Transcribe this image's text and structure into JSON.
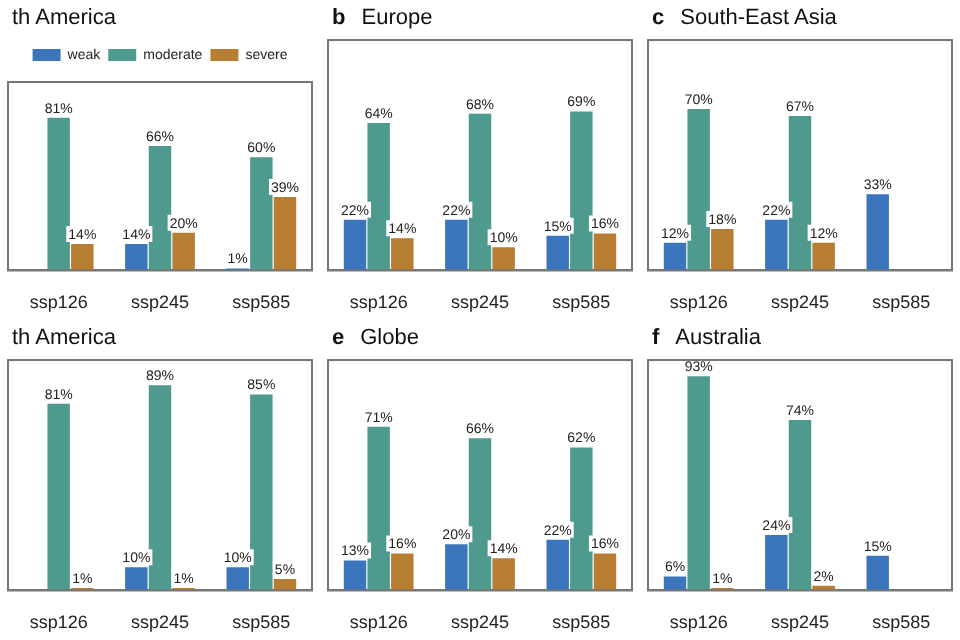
{
  "chart_data": [
    {
      "type": "bar",
      "title": "th America",
      "categories": [
        "ssp126",
        "ssp245",
        "ssp585"
      ],
      "ylim": [
        0,
        100
      ],
      "tick_labels": "x",
      "grid": false,
      "legend": "top",
      "series": [
        {
          "name": "weak",
          "color": "#3b76bd",
          "values": [
            null,
            14,
            1
          ],
          "value_labels": [
            null,
            "14%",
            "1%"
          ]
        },
        {
          "name": "moderate",
          "color": "#4f9a8f",
          "values": [
            81,
            66,
            60
          ],
          "value_labels": [
            "81%",
            "66%",
            "60%"
          ]
        },
        {
          "name": "severe",
          "color": "#b67d33",
          "values": [
            14,
            20,
            39
          ],
          "value_labels": [
            "14%",
            "20%",
            "39%"
          ]
        }
      ]
    },
    {
      "type": "bar",
      "title": "Europe",
      "annotations": [
        "b"
      ],
      "categories": [
        "ssp126",
        "ssp245",
        "ssp585"
      ],
      "ylim": [
        0,
        100
      ],
      "tick_labels": "x",
      "grid": false,
      "legend": false,
      "series": [
        {
          "color": "#3b76bd",
          "values": [
            22,
            22,
            15
          ],
          "value_labels": [
            "22%",
            "22%",
            "15%"
          ]
        },
        {
          "color": "#4f9a8f",
          "values": [
            64,
            68,
            69
          ],
          "value_labels": [
            "64%",
            "68%",
            "69%"
          ]
        },
        {
          "color": "#b67d33",
          "values": [
            14,
            10,
            16
          ],
          "value_labels": [
            "14%",
            "10%",
            "16%"
          ]
        }
      ]
    },
    {
      "type": "bar",
      "title": "South-East Asia",
      "annotations": [
        "c"
      ],
      "categories": [
        "ssp126",
        "ssp245",
        "ssp585"
      ],
      "ylim": [
        0,
        100
      ],
      "tick_labels": "x",
      "grid": false,
      "legend": false,
      "series": [
        {
          "color": "#3b76bd",
          "values": [
            12,
            22,
            33
          ],
          "value_labels": [
            "12%",
            "22%",
            "33%"
          ]
        },
        {
          "color": "#4f9a8f",
          "values": [
            70,
            67,
            null
          ],
          "value_labels": [
            "70%",
            "67%",
            null
          ]
        },
        {
          "color": "#b67d33",
          "values": [
            18,
            12,
            null
          ],
          "value_labels": [
            "18%",
            "12%",
            null
          ]
        }
      ]
    },
    {
      "type": "bar",
      "title": "th America",
      "categories": [
        "ssp126",
        "ssp245",
        "ssp585"
      ],
      "ylim": [
        0,
        100
      ],
      "tick_labels": "x",
      "grid": false,
      "legend": false,
      "series": [
        {
          "color": "#3b76bd",
          "values": [
            null,
            10,
            10
          ],
          "value_labels": [
            null,
            "10%",
            "10%"
          ]
        },
        {
          "color": "#4f9a8f",
          "values": [
            81,
            89,
            85
          ],
          "value_labels": [
            "81%",
            "89%",
            "85%"
          ]
        },
        {
          "color": "#b67d33",
          "values": [
            1,
            1,
            5
          ],
          "value_labels": [
            "1%",
            "1%",
            "5%"
          ]
        }
      ]
    },
    {
      "type": "bar",
      "title": "Globe",
      "annotations": [
        "e"
      ],
      "categories": [
        "ssp126",
        "ssp245",
        "ssp585"
      ],
      "ylim": [
        0,
        100
      ],
      "tick_labels": "x",
      "grid": false,
      "legend": false,
      "series": [
        {
          "color": "#3b76bd",
          "values": [
            13,
            20,
            22
          ],
          "value_labels": [
            "13%",
            "20%",
            "22%"
          ]
        },
        {
          "color": "#4f9a8f",
          "values": [
            71,
            66,
            62
          ],
          "value_labels": [
            "71%",
            "66%",
            "62%"
          ]
        },
        {
          "color": "#b67d33",
          "values": [
            16,
            14,
            16
          ],
          "value_labels": [
            "16%",
            "14%",
            "16%"
          ]
        }
      ]
    },
    {
      "type": "bar",
      "title": "Australia",
      "annotations": [
        "f"
      ],
      "categories": [
        "ssp126",
        "ssp245",
        "ssp585"
      ],
      "ylim": [
        0,
        100
      ],
      "tick_labels": "x",
      "grid": false,
      "legend": false,
      "series": [
        {
          "color": "#3b76bd",
          "values": [
            6,
            24,
            15
          ],
          "value_labels": [
            "6%",
            "24%",
            "15%"
          ]
        },
        {
          "color": "#4f9a8f",
          "values": [
            93,
            74,
            null
          ],
          "value_labels": [
            "93%",
            "74%",
            null
          ]
        },
        {
          "color": "#b67d33",
          "values": [
            1,
            2,
            null
          ],
          "value_labels": [
            "1%",
            "2%",
            null
          ]
        }
      ]
    }
  ]
}
